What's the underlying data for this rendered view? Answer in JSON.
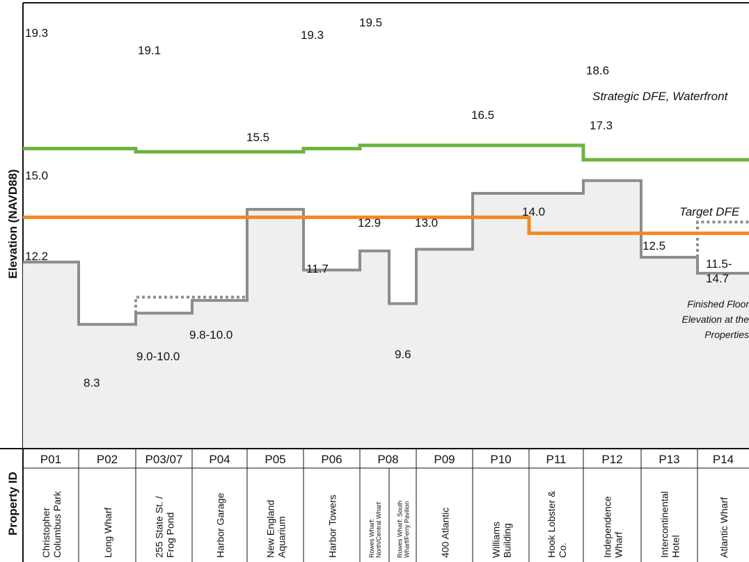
{
  "chart_data": {
    "type": "line",
    "ylabel": "Elevation (NAVD88)",
    "row_header": "Property ID",
    "properties": [
      {
        "id": "P01",
        "name_lines": [
          "Christopher",
          "Columbus Park"
        ],
        "small": false
      },
      {
        "id": "P02",
        "name_lines": [
          "Long Wharf"
        ],
        "small": false
      },
      {
        "id": "P03/07",
        "name_lines": [
          "255 State St. /",
          "Frog Pond"
        ],
        "small": false
      },
      {
        "id": "P04",
        "name_lines": [
          "Harbor Garage"
        ],
        "small": false
      },
      {
        "id": "P05",
        "name_lines": [
          "New England",
          "Aquarium"
        ],
        "small": false
      },
      {
        "id": "P06",
        "name_lines": [
          "Harbor Towers"
        ],
        "small": false
      },
      {
        "id": "P08",
        "name_lines": [],
        "small": false
      },
      {
        "id": "P09",
        "name_lines": [
          "400 Atlantic"
        ],
        "small": false
      },
      {
        "id": "P10",
        "name_lines": [
          "Williams",
          "Building"
        ],
        "small": false
      },
      {
        "id": "P11",
        "name_lines": [
          "Hook Lobster &",
          "Co."
        ],
        "small": false
      },
      {
        "id": "P12",
        "name_lines": [
          "Independence",
          "Wharf"
        ],
        "small": false
      },
      {
        "id": "P13",
        "name_lines": [
          "Intercontinental",
          "Hotel"
        ],
        "small": false
      },
      {
        "id": "P14",
        "name_lines": [
          "Atlantic Wharf"
        ],
        "small": false
      }
    ],
    "p08_subnames": [
      [
        "Rowes Wharf:",
        "North/Central Wharf"
      ],
      [
        "Rowes Wharf: South",
        "Wharf/Ferry Pavilion"
      ]
    ],
    "series": [
      {
        "name": "Strategic DFE, Waterfront",
        "color": "#6db33f",
        "values": [
          19.3,
          19.3,
          19.1,
          19.1,
          19.1,
          19.3,
          19.5,
          19.5,
          19.5,
          19.5,
          18.6,
          18.6,
          18.6
        ]
      },
      {
        "name": "Target DFE",
        "color": "#f08a24",
        "values": [
          15.0,
          15.0,
          15.0,
          15.0,
          15.0,
          15.0,
          15.0,
          15.0,
          15.0,
          14.0,
          14.0,
          14.0,
          14.0
        ]
      },
      {
        "name": "Finished Floor Elevation at the Properties",
        "color": "#8c8c8c",
        "values": [
          12.2,
          8.3,
          9.0,
          9.8,
          15.5,
          11.7,
          12.9,
          13.0,
          16.5,
          16.5,
          17.3,
          12.5,
          11.5
        ],
        "p08_split": [
          12.9,
          9.6
        ]
      }
    ],
    "dotted_upper_ranges": [
      {
        "property": "P03/07",
        "upper": 10.0
      },
      {
        "property": "P04",
        "upper": 10.0
      },
      {
        "property": "P14",
        "upper": 14.7
      }
    ],
    "data_labels": {
      "green": [
        "19.3",
        "19.1",
        "19.3",
        "19.5",
        "18.6"
      ],
      "orange": [
        "15.0",
        "14.0"
      ],
      "grey": [
        "12.2",
        "8.3",
        "9.0-10.0",
        "9.8-10.0",
        "15.5",
        "11.7",
        "12.9",
        "9.6",
        "13.0",
        "16.5",
        "17.3",
        "12.5",
        "11.5-",
        "14.7"
      ]
    },
    "annotations": {
      "green": "Strategic DFE, Waterfront",
      "orange": "Target DFE",
      "grey_lines": [
        "Finished Floor",
        "Elevation at the",
        "Properties"
      ]
    },
    "ylim": [
      6,
      21
    ],
    "grid": false
  }
}
